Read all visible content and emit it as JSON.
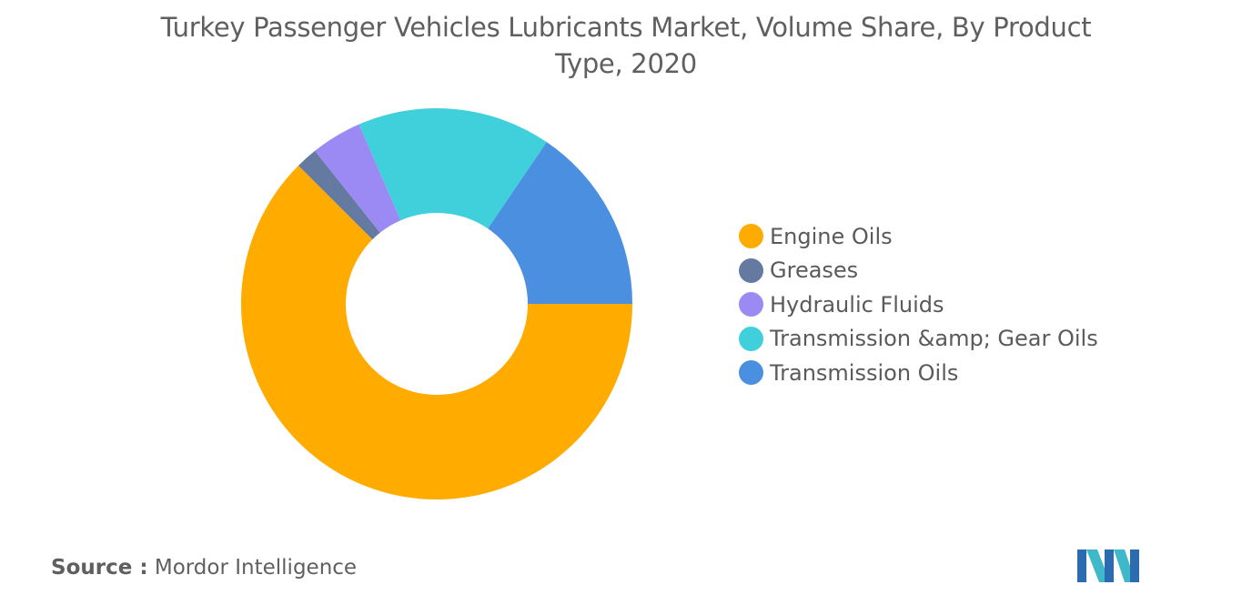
{
  "title": "Turkey Passenger Vehicles Lubricants Market, Volume Share, By Product Type, 2020",
  "source": {
    "prefix": "Source :",
    "text": "Mordor Intelligence"
  },
  "chart_data": {
    "type": "pie",
    "variant": "donut",
    "title": "Turkey Passenger Vehicles Lubricants Market, Volume Share, By Product Type, 2020",
    "legend_position": "right",
    "categories": [
      "Engine Oils",
      "Greases",
      "Hydraulic Fluids",
      "Transmission &amp; Gear Oils",
      "Transmission Oils"
    ],
    "values": [
      62.5,
      1.8,
      4.2,
      16.0,
      15.5
    ],
    "colors": [
      "#FFAB00",
      "#657AA0",
      "#9B8AF3",
      "#40D0DB",
      "#4A8FE0"
    ]
  }
}
